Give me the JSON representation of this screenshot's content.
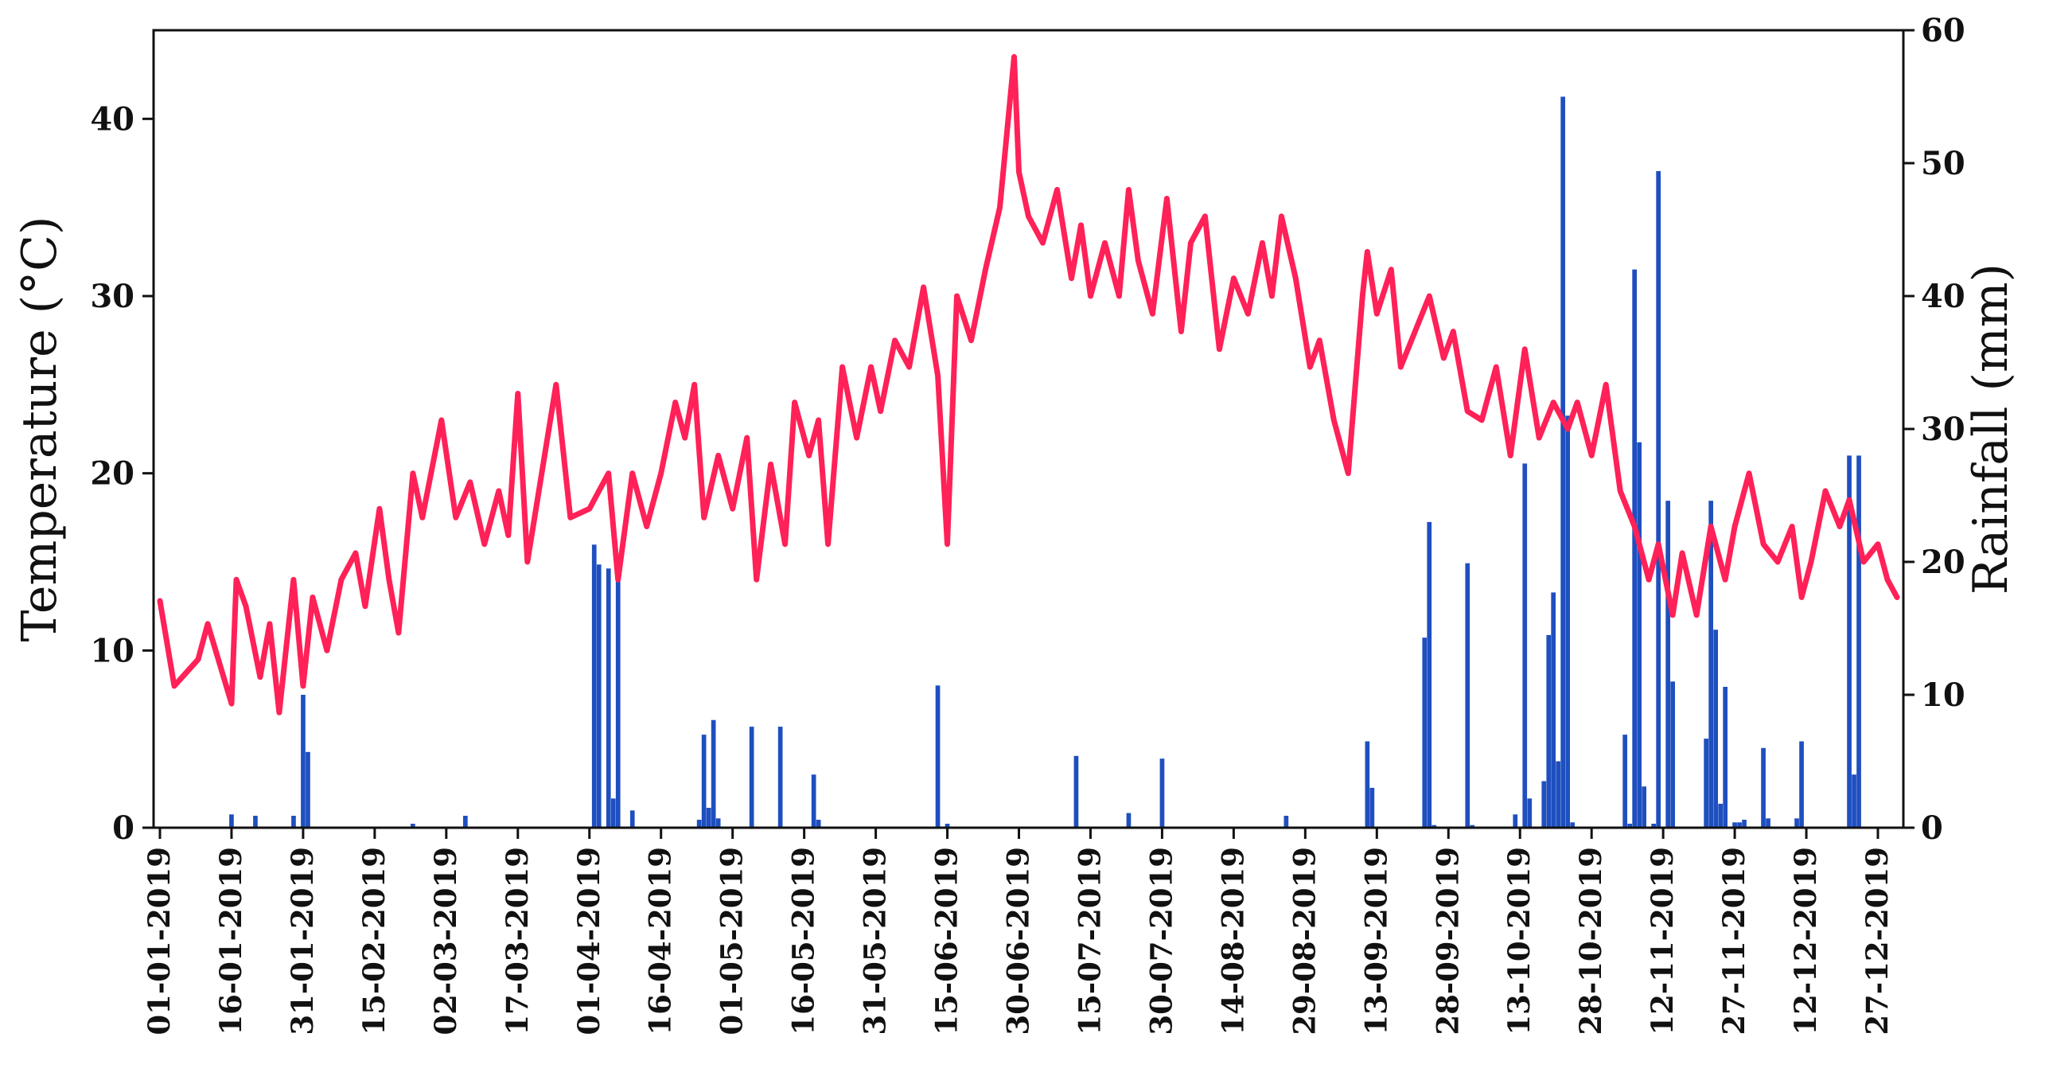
{
  "chart_data": {
    "type": "bar+line",
    "title": "",
    "xlabel": "",
    "ylabel_left": "Temperature (°C)",
    "ylabel_right": "Rainfall (mm)",
    "grid": false,
    "legend": "none",
    "colors": {
      "temperature": "#ff2157",
      "rainfall": "#1f4fbf",
      "axes": "#111111"
    },
    "x_range": [
      "01-01-2019",
      "31-12-2019"
    ],
    "y_left": {
      "min": 0,
      "max": 45,
      "ticks": [
        0,
        10,
        20,
        30,
        40
      ]
    },
    "y_right": {
      "min": 0,
      "max": 60,
      "ticks": [
        0,
        10,
        20,
        30,
        40,
        50,
        60
      ]
    },
    "x_tick_labels": [
      "01-01-2019",
      "16-01-2019",
      "31-01-2019",
      "15-02-2019",
      "02-03-2019",
      "17-03-2019",
      "01-04-2019",
      "16-04-2019",
      "01-05-2019",
      "16-05-2019",
      "31-05-2019",
      "15-06-2019",
      "30-06-2019",
      "15-07-2019",
      "30-07-2019",
      "14-08-2019",
      "29-08-2019",
      "13-09-2019",
      "28-09-2019",
      "13-10-2019",
      "28-10-2019",
      "12-11-2019",
      "27-11-2019",
      "12-12-2019",
      "27-12-2019"
    ],
    "temperature_series": {
      "x": [
        "01-01-2019",
        "04-01-2019",
        "09-01-2019",
        "11-01-2019",
        "16-01-2019",
        "17-01-2019",
        "19-01-2019",
        "22-01-2019",
        "24-01-2019",
        "26-01-2019",
        "29-01-2019",
        "31-01-2019",
        "02-02-2019",
        "05-02-2019",
        "08-02-2019",
        "11-02-2019",
        "13-02-2019",
        "16-02-2019",
        "18-02-2019",
        "20-02-2019",
        "23-02-2019",
        "25-02-2019",
        "01-03-2019",
        "04-03-2019",
        "07-03-2019",
        "10-03-2019",
        "13-03-2019",
        "15-03-2019",
        "17-03-2019",
        "19-03-2019",
        "22-03-2019",
        "25-03-2019",
        "28-03-2019",
        "01-04-2019",
        "03-04-2019",
        "05-04-2019",
        "07-04-2019",
        "10-04-2019",
        "13-04-2019",
        "16-04-2019",
        "19-04-2019",
        "21-04-2019",
        "23-04-2019",
        "25-04-2019",
        "28-04-2019",
        "01-05-2019",
        "04-05-2019",
        "06-05-2019",
        "09-05-2019",
        "12-05-2019",
        "14-05-2019",
        "17-05-2019",
        "19-05-2019",
        "21-05-2019",
        "24-05-2019",
        "27-05-2019",
        "30-05-2019",
        "01-06-2019",
        "04-06-2019",
        "07-06-2019",
        "10-06-2019",
        "13-06-2019",
        "15-06-2019",
        "17-06-2019",
        "20-06-2019",
        "23-06-2019",
        "26-06-2019",
        "29-06-2019",
        "30-06-2019",
        "02-07-2019",
        "05-07-2019",
        "08-07-2019",
        "11-07-2019",
        "13-07-2019",
        "15-07-2019",
        "18-07-2019",
        "21-07-2019",
        "23-07-2019",
        "25-07-2019",
        "28-07-2019",
        "31-07-2019",
        "03-08-2019",
        "05-08-2019",
        "08-08-2019",
        "11-08-2019",
        "14-08-2019",
        "17-08-2019",
        "20-08-2019",
        "22-08-2019",
        "24-08-2019",
        "27-08-2019",
        "30-08-2019",
        "01-09-2019",
        "04-09-2019",
        "07-09-2019",
        "10-09-2019",
        "11-09-2019",
        "13-09-2019",
        "16-09-2019",
        "18-09-2019",
        "21-09-2019",
        "24-09-2019",
        "27-09-2019",
        "29-09-2019",
        "02-10-2019",
        "05-10-2019",
        "08-10-2019",
        "11-10-2019",
        "14-10-2019",
        "17-10-2019",
        "20-10-2019",
        "23-10-2019",
        "25-10-2019",
        "28-10-2019",
        "31-10-2019",
        "03-11-2019",
        "06-11-2019",
        "09-11-2019",
        "11-11-2019",
        "14-11-2019",
        "16-11-2019",
        "19-11-2019",
        "22-11-2019",
        "25-11-2019",
        "27-11-2019",
        "30-11-2019",
        "03-12-2019",
        "06-12-2019",
        "09-12-2019",
        "11-12-2019",
        "13-12-2019",
        "16-12-2019",
        "19-12-2019",
        "21-12-2019",
        "24-12-2019",
        "27-12-2019",
        "29-12-2019",
        "31-12-2019"
      ],
      "y": [
        12.8,
        8,
        9.5,
        11.5,
        7,
        14,
        12.5,
        8.5,
        11.5,
        6.5,
        14,
        8,
        13,
        10,
        14,
        15.5,
        12.5,
        18,
        14,
        11,
        20,
        17.5,
        23,
        17.5,
        19.5,
        16,
        19,
        16.5,
        24.5,
        15,
        20,
        25,
        17.5,
        18,
        19,
        20,
        14,
        20,
        17,
        20,
        24,
        22,
        25,
        17.5,
        21,
        18,
        22,
        14,
        20.5,
        16,
        24,
        21,
        23,
        16,
        26,
        22,
        26,
        23.5,
        27.5,
        26,
        30.5,
        25.5,
        16,
        30,
        27.5,
        31.5,
        35,
        43.5,
        37,
        34.5,
        33,
        36,
        31,
        34,
        30,
        33,
        30,
        36,
        32,
        29,
        35.5,
        28,
        33,
        34.5,
        27,
        31,
        29,
        33,
        30,
        34.5,
        31,
        26,
        27.5,
        23,
        20,
        30,
        32.5,
        29,
        31.5,
        26,
        28,
        30,
        26.5,
        28,
        23.5,
        23,
        26,
        21,
        27,
        22,
        24,
        22.5,
        24,
        21,
        25,
        19,
        17,
        14,
        16,
        12,
        15.5,
        12,
        17,
        14,
        17,
        20,
        16,
        15,
        17,
        13,
        15,
        19,
        17,
        18.5,
        15,
        16,
        14,
        13
      ]
    },
    "rainfall_series": {
      "x": [
        "16-01-2019",
        "21-01-2019",
        "29-01-2019",
        "31-01-2019",
        "01-02-2019",
        "23-02-2019",
        "06-03-2019",
        "02-04-2019",
        "03-04-2019",
        "05-04-2019",
        "06-04-2019",
        "07-04-2019",
        "10-04-2019",
        "24-04-2019",
        "25-04-2019",
        "26-04-2019",
        "27-04-2019",
        "28-04-2019",
        "05-05-2019",
        "11-05-2019",
        "18-05-2019",
        "19-05-2019",
        "13-06-2019",
        "15-06-2019",
        "12-07-2019",
        "23-07-2019",
        "30-07-2019",
        "25-08-2019",
        "11-09-2019",
        "12-09-2019",
        "23-09-2019",
        "24-09-2019",
        "25-09-2019",
        "02-10-2019",
        "03-10-2019",
        "12-10-2019",
        "14-10-2019",
        "15-10-2019",
        "18-10-2019",
        "19-10-2019",
        "20-10-2019",
        "21-10-2019",
        "22-10-2019",
        "23-10-2019",
        "24-10-2019",
        "04-11-2019",
        "05-11-2019",
        "06-11-2019",
        "07-11-2019",
        "08-11-2019",
        "10-11-2019",
        "11-11-2019",
        "13-11-2019",
        "14-11-2019",
        "21-11-2019",
        "22-11-2019",
        "23-11-2019",
        "24-11-2019",
        "25-11-2019",
        "27-11-2019",
        "28-11-2019",
        "29-11-2019",
        "03-12-2019",
        "04-12-2019",
        "10-12-2019",
        "11-12-2019",
        "21-12-2019",
        "22-12-2019",
        "23-12-2019"
      ],
      "values": [
        1,
        0.9,
        0.9,
        10,
        5.7,
        0.3,
        0.9,
        21.3,
        19.8,
        19.5,
        2.2,
        19.2,
        1.3,
        0.6,
        7,
        1.5,
        8.1,
        0.7,
        7.6,
        7.6,
        4,
        0.6,
        10.7,
        0.3,
        5.4,
        1.1,
        5.2,
        0.9,
        6.5,
        3,
        14.3,
        23,
        0.2,
        19.9,
        0.2,
        1,
        27.4,
        2.2,
        3.5,
        14.5,
        17.7,
        5,
        55,
        31,
        0.4,
        7,
        0.3,
        42,
        29,
        3.1,
        0.3,
        49.4,
        24.6,
        11,
        6.7,
        24.6,
        14.9,
        1.8,
        10.6,
        0.4,
        0.4,
        0.6,
        6,
        0.7,
        0.7,
        6.5,
        28,
        4,
        28
      ]
    }
  }
}
